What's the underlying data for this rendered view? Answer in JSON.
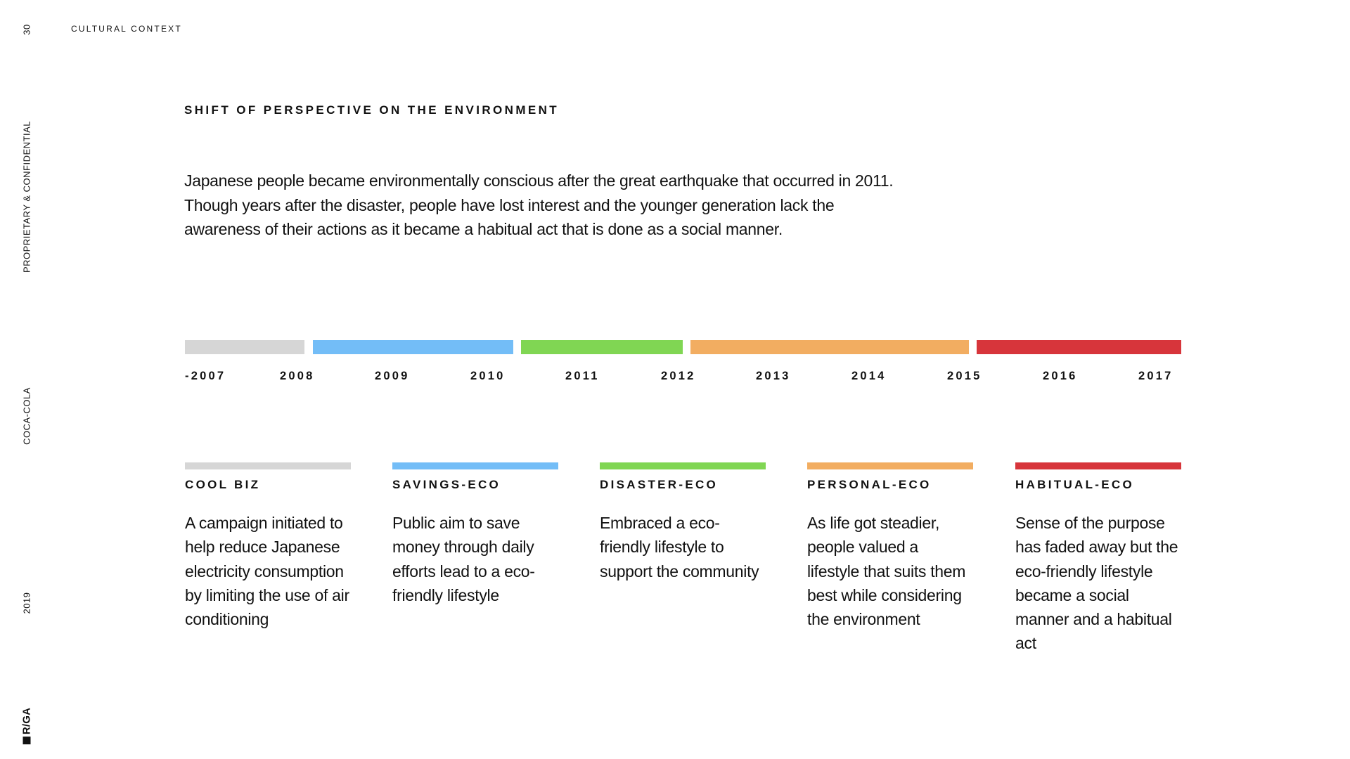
{
  "sidebar": {
    "page_number": "30",
    "confidential": "PROPRIETARY & CONFIDENTIAL",
    "client": "COCA-COLA",
    "year": "2019",
    "logo": "R/GA"
  },
  "header": {
    "section": "CULTURAL CONTEXT"
  },
  "title": "SHIFT OF PERSPECTIVE ON THE ENVIRONMENT",
  "intro": "Japanese people became environmentally conscious after the great earthquake that occurred in 2011. Though years after the disaster, people have lost interest and the younger generation lack the awareness of their actions as it became a habitual act that is done as a social manner.",
  "colors": {
    "gray": "#d6d6d6",
    "blue": "#73bdf7",
    "green": "#80d653",
    "orange": "#f2ad61",
    "red": "#d7353b"
  },
  "timeline": {
    "years": [
      "-2007",
      "2008",
      "2009",
      "2010",
      "2011",
      "2012",
      "2013",
      "2014",
      "2015",
      "2016",
      "2017"
    ]
  },
  "phases": [
    {
      "title": "COOL BIZ",
      "color": "#d6d6d6",
      "text": "A campaign initiated to help reduce Japanese electricity consumption by limiting the use of air conditioning"
    },
    {
      "title": "SAVINGS-ECO",
      "color": "#73bdf7",
      "text": "Public aim to save money through daily efforts lead to a eco-friendly lifestyle"
    },
    {
      "title": "DISASTER-ECO",
      "color": "#80d653",
      "text": "Embraced a eco-friendly lifestyle to support the community"
    },
    {
      "title": "PERSONAL-ECO",
      "color": "#f2ad61",
      "text": "As life got steadier, people valued a lifestyle that suits them best while considering the environment"
    },
    {
      "title": "HABITUAL-ECO",
      "color": "#d7353b",
      "text": "Sense of the purpose has faded away but the eco-friendly lifestyle became a social manner and a habitual act"
    }
  ]
}
